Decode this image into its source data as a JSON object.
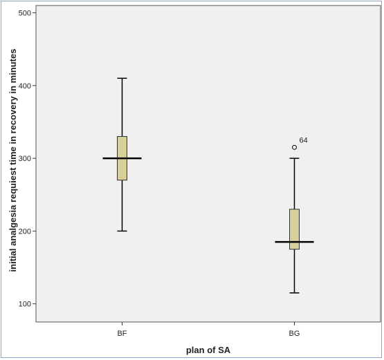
{
  "chart_data": {
    "type": "boxplot",
    "xlabel": "plan of SA",
    "ylabel": "initial analgesia requiest time in recovery in minutes",
    "ylim": [
      75,
      510
    ],
    "yticks": [
      100,
      200,
      300,
      400,
      500
    ],
    "grid": false,
    "legend": "none",
    "box_color": "#d6cf9a",
    "categories": [
      "BF",
      "BG"
    ],
    "boxes": [
      {
        "category": "BF",
        "whisker_low": 200,
        "q1": 270,
        "median": 300,
        "q3": 330,
        "whisker_high": 410,
        "outliers": []
      },
      {
        "category": "BG",
        "whisker_low": 115,
        "q1": 175,
        "median": 185,
        "q3": 230,
        "whisker_high": 300,
        "outliers": [
          {
            "value": 315,
            "label": "64"
          }
        ]
      }
    ]
  }
}
